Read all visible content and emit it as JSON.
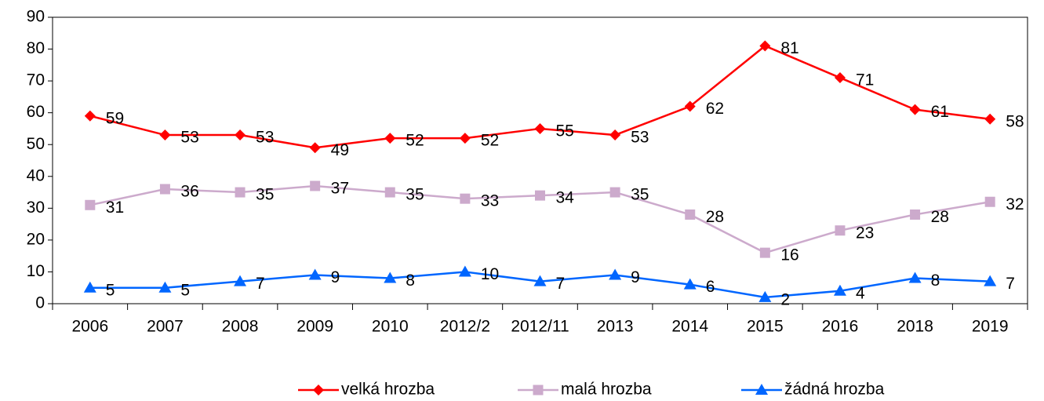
{
  "chart_data": {
    "type": "line",
    "categories": [
      "2006",
      "2007",
      "2008",
      "2009",
      "2010",
      "2012/2",
      "2012/11",
      "2013",
      "2014",
      "2015",
      "2016",
      "2018",
      "2019"
    ],
    "series": [
      {
        "name": "velká hrozba",
        "color": "#ff0000",
        "marker": "diamond",
        "values": [
          59,
          53,
          53,
          49,
          52,
          52,
          55,
          53,
          62,
          81,
          71,
          61,
          58
        ]
      },
      {
        "name": "malá hrozba",
        "color": "#ccaacc",
        "marker": "square",
        "values": [
          31,
          36,
          35,
          37,
          35,
          33,
          34,
          35,
          28,
          16,
          23,
          28,
          32
        ]
      },
      {
        "name": "žádná hrozba",
        "color": "#0066ff",
        "marker": "triangle",
        "values": [
          5,
          5,
          7,
          9,
          8,
          10,
          7,
          9,
          6,
          2,
          4,
          8,
          7
        ]
      }
    ],
    "ylim": [
      0,
      90
    ],
    "yticks": [
      0,
      10,
      20,
      30,
      40,
      50,
      60,
      70,
      80,
      90
    ],
    "grid": false,
    "legend": "bottom"
  }
}
